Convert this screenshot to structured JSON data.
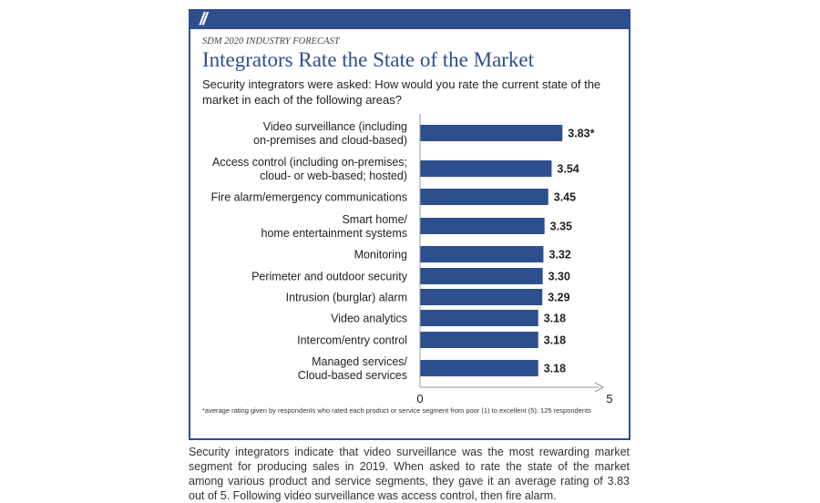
{
  "card": {
    "kicker": "SDM 2020 INDUSTRY FORECAST",
    "title": "Integrators Rate the State of the Market",
    "subtitle": "Security integrators were asked: How would you rate the current state of the market in each of the following areas?",
    "footnote": "*average rating given by respondents who rated each product or service segment from poor (1) to excellent (5); 125 respondents",
    "accent_color": "#2d4f8e",
    "bar_color": "#2d4f8e"
  },
  "chart_data": {
    "type": "bar",
    "orientation": "horizontal",
    "categories": [
      [
        "Video surveillance (including",
        "on-premises and cloud-based)"
      ],
      [
        "Access control (including on-premises;",
        "cloud- or web-based; hosted)"
      ],
      [
        "Fire alarm/emergency communications"
      ],
      [
        "Smart home/",
        "home entertainment systems"
      ],
      [
        "Monitoring"
      ],
      [
        "Perimeter and outdoor security"
      ],
      [
        "Intrusion (burglar) alarm"
      ],
      [
        "Video analytics"
      ],
      [
        "Intercom/entry control"
      ],
      [
        "Managed services/",
        "Cloud-based services"
      ]
    ],
    "values": [
      3.83,
      3.54,
      3.45,
      3.35,
      3.32,
      3.3,
      3.29,
      3.18,
      3.18,
      3.18
    ],
    "value_labels": [
      "3.83*",
      "3.54",
      "3.45",
      "3.35",
      "3.32",
      "3.30",
      "3.29",
      "3.18",
      "3.18",
      "3.18"
    ],
    "xlim": [
      0,
      5
    ],
    "x_ticks": [
      "0",
      "5"
    ],
    "grid": false
  },
  "caption": "Security integrators indicate that video surveillance was the most rewarding market segment for producing sales in 2019. When asked to rate the state of the market among various product and service segments, they gave it an average rating of 3.83 out of 5. Following video surveillance was access control, then fire alarm."
}
